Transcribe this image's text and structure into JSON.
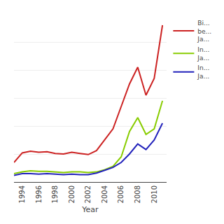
{
  "chart_data": {
    "type": "line",
    "x": [
      1993,
      1994,
      1995,
      1996,
      1997,
      1998,
      1999,
      2000,
      2001,
      2002,
      2003,
      2004,
      2005,
      2006,
      2007,
      2008,
      2009,
      2010,
      2011
    ],
    "series": [
      {
        "name": "Bi...\nbe...\nJa...",
        "color": "#cc2222",
        "values": [
          3.5,
          5.2,
          5.5,
          5.3,
          5.4,
          5.1,
          5.0,
          5.3,
          5.1,
          4.9,
          5.6,
          7.5,
          9.5,
          13.5,
          17.5,
          20.5,
          15.5,
          18.5,
          28.0
        ]
      },
      {
        "name": "In...\nJa...",
        "color": "#88cc00",
        "values": [
          1.5,
          1.8,
          2.0,
          1.9,
          1.9,
          1.8,
          1.7,
          1.8,
          1.8,
          1.7,
          1.8,
          2.2,
          2.8,
          4.5,
          9.0,
          11.5,
          8.5,
          9.5,
          14.5
        ]
      },
      {
        "name": "In...\nJa...",
        "color": "#2222bb",
        "values": [
          1.2,
          1.5,
          1.5,
          1.4,
          1.5,
          1.4,
          1.3,
          1.4,
          1.3,
          1.3,
          1.6,
          2.1,
          2.6,
          3.5,
          5.0,
          6.8,
          5.8,
          7.5,
          10.5
        ]
      }
    ],
    "x_label": "Year",
    "xlim": [
      1993,
      2011.5
    ],
    "ylim": [
      0,
      30
    ],
    "xticks": [
      1994,
      1996,
      1998,
      2000,
      2002,
      2004,
      2006,
      2008,
      2010
    ],
    "yticks": [
      0,
      5,
      10,
      15,
      20,
      25,
      30
    ],
    "grid": true,
    "tick_labels": "x",
    "legend": "right"
  }
}
